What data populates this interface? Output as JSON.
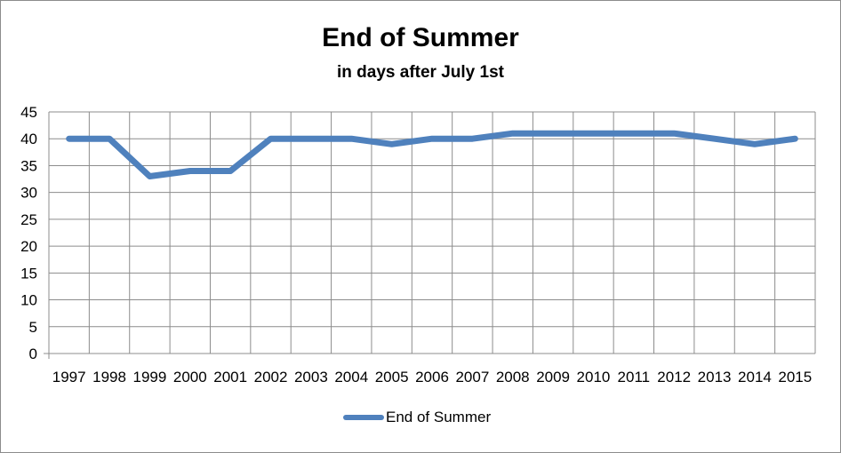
{
  "chart_data": {
    "type": "line",
    "title": "End of Summer",
    "subtitle": "in days after July 1st",
    "xlabel": "",
    "ylabel": "",
    "categories": [
      "1997",
      "1998",
      "1999",
      "2000",
      "2001",
      "2002",
      "2003",
      "2004",
      "2005",
      "2006",
      "2007",
      "2008",
      "2009",
      "2010",
      "2011",
      "2012",
      "2013",
      "2014",
      "2015"
    ],
    "series": [
      {
        "name": "End of Summer",
        "values": [
          40,
          40,
          33,
          34,
          34,
          40,
          40,
          40,
          39,
          40,
          40,
          41,
          41,
          41,
          41,
          41,
          40,
          39,
          40
        ],
        "color": "#4f81bd"
      }
    ],
    "ylim": [
      0,
      45
    ],
    "yticks": [
      0,
      5,
      10,
      15,
      20,
      25,
      30,
      35,
      40,
      45
    ],
    "grid": true,
    "legend_position": "bottom"
  }
}
